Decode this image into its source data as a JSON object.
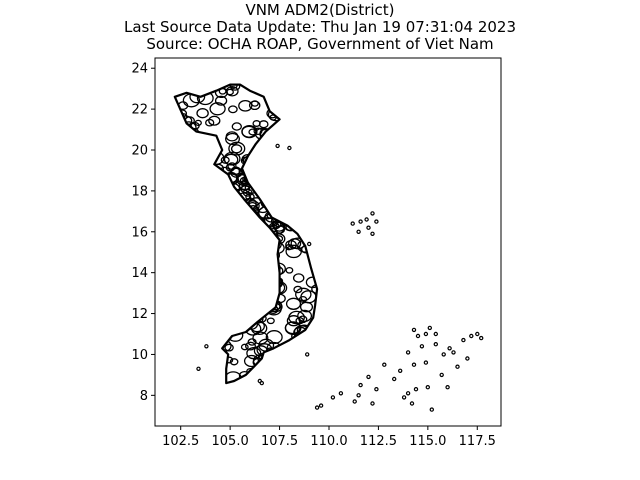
{
  "title_lines": [
    "VNM ADM2(District)",
    "Last Source Data Update: Thu Jan 19 07:31:04 2023",
    "Source: OCHA ROAP, Government of Viet Nam"
  ],
  "chart_data": {
    "type": "map",
    "xlim": [
      101.2,
      118.7
    ],
    "ylim": [
      6.5,
      24.5
    ],
    "xticks": [
      102.5,
      105.0,
      107.5,
      110.0,
      112.5,
      115.0,
      117.5
    ],
    "xtick_labels": [
      "102.5",
      "105.0",
      "107.5",
      "110.0",
      "112.5",
      "115.0",
      "117.5"
    ],
    "yticks": [
      8,
      10,
      12,
      14,
      16,
      18,
      20,
      22,
      24
    ],
    "ytick_labels": [
      "8",
      "10",
      "12",
      "14",
      "16",
      "18",
      "20",
      "22",
      "24"
    ],
    "grid": false,
    "boundary_color": "#000000",
    "mainland_outline": [
      [
        102.2,
        22.6
      ],
      [
        102.8,
        22.8
      ],
      [
        103.5,
        22.6
      ],
      [
        104.3,
        22.9
      ],
      [
        105.0,
        23.2
      ],
      [
        105.5,
        23.2
      ],
      [
        106.0,
        22.9
      ],
      [
        106.7,
        22.6
      ],
      [
        107.0,
        21.9
      ],
      [
        107.5,
        21.5
      ],
      [
        106.8,
        20.9
      ],
      [
        106.3,
        20.3
      ],
      [
        105.9,
        19.7
      ],
      [
        105.6,
        19.1
      ],
      [
        105.9,
        18.4
      ],
      [
        106.5,
        17.6
      ],
      [
        107.1,
        16.7
      ],
      [
        107.9,
        16.3
      ],
      [
        108.4,
        15.9
      ],
      [
        108.8,
        15.3
      ],
      [
        109.1,
        14.2
      ],
      [
        109.4,
        13.2
      ],
      [
        109.3,
        12.4
      ],
      [
        109.2,
        11.8
      ],
      [
        108.8,
        11.2
      ],
      [
        108.0,
        10.7
      ],
      [
        107.2,
        10.3
      ],
      [
        106.7,
        10.1
      ],
      [
        106.6,
        9.8
      ],
      [
        106.2,
        9.4
      ],
      [
        105.8,
        9.0
      ],
      [
        105.2,
        8.7
      ],
      [
        104.8,
        8.6
      ],
      [
        104.8,
        9.3
      ],
      [
        104.9,
        10.0
      ],
      [
        104.6,
        10.3
      ],
      [
        105.1,
        10.9
      ],
      [
        105.8,
        11.1
      ],
      [
        106.4,
        11.6
      ],
      [
        107.3,
        12.3
      ],
      [
        107.5,
        13.0
      ],
      [
        107.5,
        14.0
      ],
      [
        107.4,
        14.9
      ],
      [
        107.5,
        15.6
      ],
      [
        107.0,
        16.2
      ],
      [
        106.5,
        16.7
      ],
      [
        105.7,
        17.6
      ],
      [
        105.2,
        18.2
      ],
      [
        104.9,
        18.8
      ],
      [
        104.2,
        19.3
      ],
      [
        104.6,
        20.0
      ],
      [
        104.3,
        20.7
      ],
      [
        103.3,
        20.9
      ],
      [
        102.8,
        21.3
      ],
      [
        102.2,
        22.6
      ]
    ],
    "islands": [
      [
        111.2,
        16.4
      ],
      [
        111.6,
        16.5
      ],
      [
        111.9,
        16.6
      ],
      [
        112.2,
        16.9
      ],
      [
        112.4,
        16.5
      ],
      [
        112.2,
        15.9
      ],
      [
        111.5,
        16.0
      ],
      [
        112.0,
        16.2
      ],
      [
        103.4,
        9.3
      ],
      [
        103.8,
        10.4
      ],
      [
        106.5,
        8.7
      ],
      [
        106.6,
        8.6
      ],
      [
        107.4,
        20.2
      ],
      [
        108.0,
        20.1
      ],
      [
        109.0,
        15.4
      ],
      [
        108.9,
        10.0
      ],
      [
        109.4,
        7.4
      ],
      [
        109.6,
        7.5
      ],
      [
        110.2,
        7.9
      ],
      [
        110.6,
        8.1
      ],
      [
        111.5,
        8.0
      ],
      [
        111.6,
        8.5
      ],
      [
        112.0,
        8.9
      ],
      [
        112.4,
        8.3
      ],
      [
        112.8,
        9.5
      ],
      [
        113.3,
        8.8
      ],
      [
        113.8,
        7.9
      ],
      [
        114.0,
        10.1
      ],
      [
        114.2,
        7.6
      ],
      [
        114.4,
        8.3
      ],
      [
        114.3,
        9.5
      ],
      [
        114.7,
        10.4
      ],
      [
        114.9,
        9.6
      ],
      [
        115.0,
        8.4
      ],
      [
        115.2,
        7.3
      ],
      [
        115.4,
        10.5
      ],
      [
        115.7,
        9.0
      ],
      [
        115.8,
        10.0
      ],
      [
        116.0,
        8.4
      ],
      [
        116.1,
        10.3
      ],
      [
        116.5,
        9.4
      ],
      [
        116.8,
        10.7
      ],
      [
        117.0,
        9.8
      ],
      [
        117.2,
        10.9
      ],
      [
        117.5,
        11.0
      ],
      [
        117.7,
        10.8
      ],
      [
        114.3,
        11.2
      ],
      [
        114.5,
        10.9
      ],
      [
        114.9,
        11.0
      ],
      [
        115.1,
        11.3
      ],
      [
        115.4,
        11.0
      ],
      [
        113.6,
        9.2
      ],
      [
        112.2,
        7.6
      ],
      [
        111.3,
        7.7
      ],
      [
        114.0,
        8.1
      ],
      [
        116.3,
        10.1
      ]
    ]
  }
}
